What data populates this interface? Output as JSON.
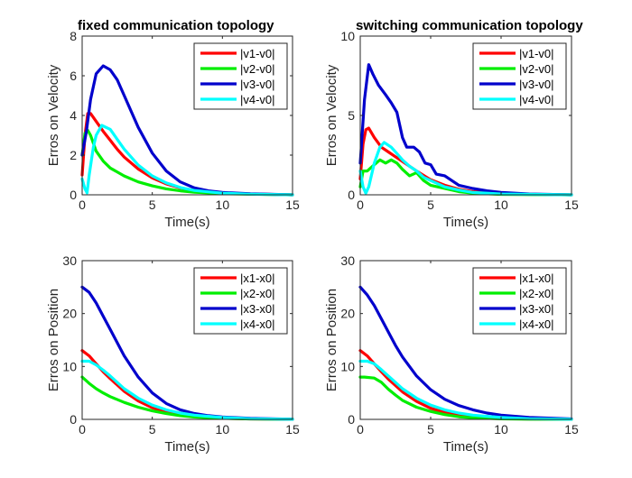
{
  "chart_data": [
    {
      "type": "line",
      "title": "fixed communication topology",
      "xlabel": "Time(s)",
      "ylabel": "Erros on Velocity",
      "xlim": [
        0,
        15
      ],
      "ylim": [
        0,
        8
      ],
      "xticks": [
        0,
        5,
        10,
        15
      ],
      "yticks": [
        0,
        2,
        4,
        6,
        8
      ],
      "legend_position": "top-right",
      "series": [
        {
          "name": "|v1-v0|",
          "color": "#ff0000",
          "x": [
            0,
            0.2,
            0.4,
            0.6,
            1.0,
            1.5,
            2,
            2.5,
            3,
            4,
            5,
            6,
            7,
            8,
            9,
            10,
            12,
            15
          ],
          "y": [
            1.0,
            3.0,
            4.1,
            4.1,
            3.7,
            3.2,
            2.75,
            2.3,
            1.9,
            1.3,
            0.85,
            0.55,
            0.35,
            0.22,
            0.14,
            0.09,
            0.04,
            0.0
          ]
        },
        {
          "name": "|v2-v0|",
          "color": "#00ee00",
          "x": [
            0,
            0.2,
            0.4,
            0.6,
            0.8,
            1.0,
            1.5,
            2,
            3,
            4,
            5,
            6,
            7,
            8,
            10,
            12,
            15
          ],
          "y": [
            2.0,
            3.1,
            3.25,
            3.0,
            2.6,
            2.2,
            1.7,
            1.35,
            0.95,
            0.65,
            0.45,
            0.3,
            0.2,
            0.13,
            0.06,
            0.03,
            0.0
          ]
        },
        {
          "name": "|v3-v0|",
          "color": "#0000cc",
          "x": [
            0,
            0.3,
            0.6,
            1.0,
            1.5,
            2,
            2.5,
            3,
            4,
            5,
            6,
            7,
            8,
            9,
            10,
            12,
            15
          ],
          "y": [
            2.0,
            3.2,
            4.8,
            6.1,
            6.5,
            6.3,
            5.8,
            5.0,
            3.4,
            2.1,
            1.2,
            0.65,
            0.35,
            0.2,
            0.12,
            0.05,
            0.0
          ]
        },
        {
          "name": "|v4-v0|",
          "color": "#00ffff",
          "x": [
            0,
            0.2,
            0.35,
            0.5,
            0.8,
            1.0,
            1.4,
            2,
            2.5,
            3,
            4,
            5,
            6,
            7,
            8,
            10,
            12,
            15
          ],
          "y": [
            0.8,
            0.3,
            0.1,
            1.0,
            2.4,
            3.0,
            3.5,
            3.3,
            2.8,
            2.3,
            1.5,
            0.95,
            0.6,
            0.37,
            0.22,
            0.08,
            0.03,
            0.0
          ]
        }
      ]
    },
    {
      "type": "line",
      "title": "switching communication topology",
      "xlabel": "Time(s)",
      "ylabel": "Erros on Velocity",
      "xlim": [
        0,
        15
      ],
      "ylim": [
        0,
        10
      ],
      "xticks": [
        0,
        5,
        10,
        15
      ],
      "yticks": [
        0,
        5,
        10
      ],
      "legend_position": "top-right",
      "series": [
        {
          "name": "|v1-v0|",
          "color": "#ff0000",
          "x": [
            0,
            0.2,
            0.4,
            0.6,
            1.0,
            1.5,
            2,
            2.5,
            3,
            3.5,
            4,
            5,
            6,
            7,
            8,
            10,
            12,
            15
          ],
          "y": [
            1.0,
            3.2,
            4.1,
            4.2,
            3.6,
            3.0,
            2.7,
            2.4,
            2.1,
            1.8,
            1.5,
            0.95,
            0.6,
            0.35,
            0.2,
            0.07,
            0.03,
            0.0
          ]
        },
        {
          "name": "|v2-v0|",
          "color": "#00ee00",
          "x": [
            0,
            0.2,
            0.5,
            1.0,
            1.4,
            1.8,
            2.2,
            2.6,
            3,
            3.5,
            4,
            4.5,
            5,
            5.5,
            6,
            7,
            8,
            10,
            15
          ],
          "y": [
            0.5,
            1.5,
            1.5,
            1.9,
            2.2,
            2.0,
            2.2,
            2.0,
            1.6,
            1.2,
            1.4,
            0.9,
            0.6,
            0.5,
            0.4,
            0.2,
            0.1,
            0.03,
            0.0
          ]
        },
        {
          "name": "|v3-v0|",
          "color": "#0000cc",
          "x": [
            0,
            0.3,
            0.6,
            0.9,
            1.3,
            1.8,
            2.2,
            2.6,
            3.0,
            3.3,
            3.8,
            4.2,
            4.6,
            5.0,
            5.4,
            6,
            6.5,
            7,
            8,
            9,
            10,
            12,
            15
          ],
          "y": [
            2.0,
            6.0,
            8.2,
            7.6,
            6.9,
            6.3,
            5.8,
            5.2,
            3.6,
            3.0,
            3.0,
            2.7,
            2.0,
            1.9,
            1.3,
            1.2,
            0.9,
            0.6,
            0.4,
            0.25,
            0.15,
            0.05,
            0.0
          ]
        },
        {
          "name": "|v4-v0|",
          "color": "#00ffff",
          "x": [
            0,
            0.2,
            0.4,
            0.6,
            1.0,
            1.4,
            1.7,
            2.2,
            2.6,
            3,
            3.5,
            4,
            4.5,
            5,
            6,
            7,
            8,
            10,
            15
          ],
          "y": [
            1.5,
            0.5,
            0.1,
            0.5,
            2.0,
            3.0,
            3.3,
            3.0,
            2.6,
            2.2,
            1.8,
            1.5,
            1.1,
            0.9,
            0.5,
            0.3,
            0.15,
            0.05,
            0.0
          ]
        }
      ]
    },
    {
      "type": "line",
      "title": "",
      "xlabel": "Time(s)",
      "ylabel": "Erros on Position",
      "xlim": [
        0,
        15
      ],
      "ylim": [
        0,
        30
      ],
      "xticks": [
        0,
        5,
        10,
        15
      ],
      "yticks": [
        0,
        10,
        20,
        30
      ],
      "legend_position": "top-right",
      "series": [
        {
          "name": "|x1-x0|",
          "color": "#ff0000",
          "x": [
            0,
            0.5,
            1,
            1.5,
            2,
            3,
            4,
            5,
            6,
            7,
            8,
            9,
            10,
            12,
            15
          ],
          "y": [
            13,
            12,
            10.5,
            9,
            7.7,
            5.3,
            3.5,
            2.2,
            1.4,
            0.9,
            0.55,
            0.35,
            0.22,
            0.08,
            0.02
          ]
        },
        {
          "name": "|x2-x0|",
          "color": "#00ee00",
          "x": [
            0,
            0.5,
            1,
            1.5,
            2,
            3,
            4,
            5,
            6,
            7,
            8,
            10,
            12,
            15
          ],
          "y": [
            8,
            6.8,
            5.8,
            5.0,
            4.3,
            3.2,
            2.3,
            1.6,
            1.1,
            0.7,
            0.45,
            0.2,
            0.08,
            0.02
          ]
        },
        {
          "name": "|x3-x0|",
          "color": "#0000cc",
          "x": [
            0,
            0.5,
            1,
            1.5,
            2,
            2.5,
            3,
            4,
            5,
            6,
            7,
            8,
            9,
            10,
            12,
            15
          ],
          "y": [
            25,
            24,
            22,
            19.5,
            17,
            14.5,
            12,
            8,
            5,
            3,
            1.8,
            1.1,
            0.7,
            0.45,
            0.18,
            0.04
          ]
        },
        {
          "name": "|x4-x0|",
          "color": "#00ffff",
          "x": [
            0,
            0.5,
            1,
            1.5,
            2,
            2.5,
            3,
            4,
            5,
            6,
            7,
            8,
            10,
            12,
            15
          ],
          "y": [
            11,
            11,
            10.3,
            9.3,
            8.2,
            7,
            5.8,
            4,
            2.7,
            1.8,
            1.2,
            0.8,
            0.35,
            0.12,
            0.02
          ]
        }
      ]
    },
    {
      "type": "line",
      "title": "",
      "xlabel": "Time(s)",
      "ylabel": "Erros on Position",
      "xlim": [
        0,
        15
      ],
      "ylim": [
        0,
        30
      ],
      "xticks": [
        0,
        5,
        10,
        15
      ],
      "yticks": [
        0,
        10,
        20,
        30
      ],
      "legend_position": "top-right",
      "series": [
        {
          "name": "|x1-x0|",
          "color": "#ff0000",
          "x": [
            0,
            0.5,
            1,
            1.5,
            2,
            3,
            4,
            5,
            6,
            7,
            8,
            9,
            10,
            12,
            15
          ],
          "y": [
            13,
            12,
            10.5,
            9,
            7.6,
            5.2,
            3.4,
            2.1,
            1.3,
            0.8,
            0.5,
            0.3,
            0.2,
            0.07,
            0.02
          ]
        },
        {
          "name": "|x2-x0|",
          "color": "#00ee00",
          "x": [
            0,
            0.3,
            1,
            1.5,
            2,
            2.5,
            3,
            4,
            5,
            6,
            7,
            8,
            10,
            12,
            15
          ],
          "y": [
            8,
            8,
            7.8,
            7,
            5.7,
            4.6,
            3.6,
            2.3,
            1.5,
            0.9,
            0.5,
            0.3,
            0.1,
            0.04,
            0.01
          ]
        },
        {
          "name": "|x3-x0|",
          "color": "#0000cc",
          "x": [
            0,
            0.5,
            1,
            1.5,
            2,
            2.5,
            3,
            4,
            5,
            6,
            7,
            8,
            9,
            10,
            12,
            15
          ],
          "y": [
            25,
            23.5,
            21.5,
            19,
            16.5,
            14,
            11.8,
            8.2,
            5.6,
            3.8,
            2.6,
            1.8,
            1.2,
            0.8,
            0.35,
            0.08
          ]
        },
        {
          "name": "|x4-x0|",
          "color": "#00ffff",
          "x": [
            0,
            0.5,
            1,
            1.5,
            2,
            2.5,
            3,
            4,
            5,
            6,
            7,
            8,
            10,
            12,
            15
          ],
          "y": [
            11,
            11,
            10.5,
            9.4,
            8.2,
            7,
            5.8,
            4.0,
            2.7,
            1.8,
            1.2,
            0.8,
            0.35,
            0.12,
            0.02
          ]
        }
      ]
    }
  ]
}
